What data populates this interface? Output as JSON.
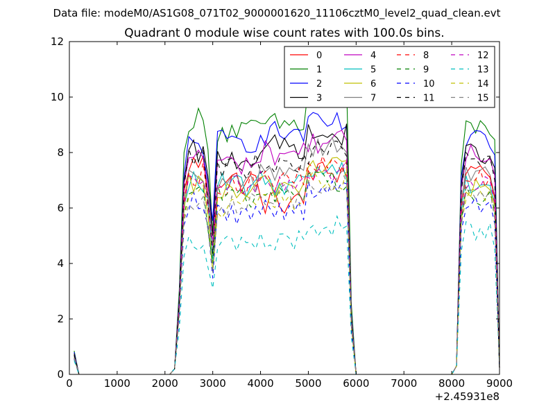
{
  "header": {
    "suptitle": "Data file: modeM0/AS1G08_071T02_9000001620_11106cztM0_level2_quad_clean.evt",
    "title": "Quadrant 0 module wise count rates with 100.0s bins.",
    "x_offset_label": "+2.45931e8"
  },
  "chart_data": {
    "type": "line",
    "title": "Quadrant 0 module wise count rates with 100.0s bins.",
    "xlabel": "",
    "ylabel": "",
    "x_offset_text": "+2.45931e8",
    "xlim": [
      0,
      9000
    ],
    "ylim": [
      0,
      12
    ],
    "xticks": [
      0,
      1000,
      2000,
      3000,
      4000,
      5000,
      6000,
      7000,
      8000,
      9000
    ],
    "yticks": [
      0,
      2,
      4,
      6,
      8,
      10,
      12
    ],
    "grid": false,
    "legend": {
      "position": "top-right",
      "columns": 4
    },
    "segments": [
      {
        "x": [
          100,
          200,
          300,
          400,
          500,
          600,
          700,
          800,
          900,
          1000,
          1100,
          1200,
          1300,
          1400,
          1500,
          1600,
          1700,
          1800,
          1900,
          2000,
          2100,
          2200
        ],
        "note": "all modules ~0.6-0.85 at x=100, then 0"
      },
      {
        "x_range": [
          2200,
          5900
        ],
        "note": "active segment"
      },
      {
        "x_range": [
          8100,
          8900
        ],
        "note": "active segment"
      }
    ],
    "series": [
      {
        "name": "0",
        "color": "#ff0000",
        "dash": "solid",
        "levels": [
          0.7,
          7.6,
          7.0,
          6.2,
          7.3,
          7.4,
          6.9
        ]
      },
      {
        "name": "1",
        "color": "#008000",
        "dash": "solid",
        "levels": [
          0.85,
          9.2,
          8.8,
          9.0,
          10.2,
          8.9,
          9.2
        ]
      },
      {
        "name": "2",
        "color": "#0000ff",
        "dash": "solid",
        "levels": [
          0.8,
          8.3,
          8.4,
          8.7,
          9.0,
          8.4,
          8.6
        ]
      },
      {
        "name": "3",
        "color": "#000000",
        "dash": "solid",
        "levels": [
          0.75,
          8.0,
          7.8,
          8.2,
          8.6,
          8.0,
          8.1
        ]
      },
      {
        "name": "4",
        "color": "#bf00bf",
        "dash": "solid",
        "levels": [
          0.7,
          7.9,
          7.6,
          8.0,
          8.4,
          7.9,
          7.8
        ]
      },
      {
        "name": "5",
        "color": "#00bfbf",
        "dash": "solid",
        "levels": [
          0.65,
          7.0,
          6.8,
          6.9,
          7.4,
          6.9,
          6.7
        ]
      },
      {
        "name": "6",
        "color": "#bfbf00",
        "dash": "solid",
        "levels": [
          0.6,
          6.8,
          6.5,
          6.8,
          7.6,
          6.7,
          6.6
        ]
      },
      {
        "name": "7",
        "color": "#808080",
        "dash": "solid",
        "levels": [
          0.65,
          7.1,
          6.9,
          7.4,
          8.3,
          7.2,
          7.0
        ]
      },
      {
        "name": "8",
        "color": "#ff0000",
        "dash": "dashed",
        "levels": [
          0.6,
          7.2,
          6.9,
          7.0,
          7.5,
          7.1,
          6.9
        ]
      },
      {
        "name": "9",
        "color": "#008000",
        "dash": "dashed",
        "levels": [
          0.6,
          6.6,
          6.4,
          6.6,
          7.0,
          6.5,
          6.4
        ]
      },
      {
        "name": "10",
        "color": "#0000ff",
        "dash": "dashed",
        "levels": [
          0.55,
          6.2,
          5.8,
          6.0,
          6.6,
          6.1,
          5.9
        ]
      },
      {
        "name": "11",
        "color": "#000000",
        "dash": "dashed",
        "levels": [
          0.7,
          7.7,
          7.5,
          7.6,
          8.0,
          7.7,
          7.6
        ]
      },
      {
        "name": "12",
        "color": "#bf00bf",
        "dash": "dashed",
        "levels": [
          0.6,
          6.9,
          6.8,
          6.9,
          7.4,
          6.8,
          6.7
        ]
      },
      {
        "name": "13",
        "color": "#00bfbf",
        "dash": "dashed",
        "levels": [
          0.5,
          4.9,
          4.6,
          4.8,
          5.4,
          5.2,
          4.9
        ]
      },
      {
        "name": "14",
        "color": "#bfbf00",
        "dash": "dashed",
        "levels": [
          0.6,
          6.5,
          6.0,
          6.3,
          7.0,
          6.4,
          6.2
        ]
      },
      {
        "name": "15",
        "color": "#808080",
        "dash": "dashed",
        "levels": [
          0.6,
          6.4,
          6.1,
          6.4,
          6.9,
          6.3,
          6.1
        ]
      }
    ]
  }
}
